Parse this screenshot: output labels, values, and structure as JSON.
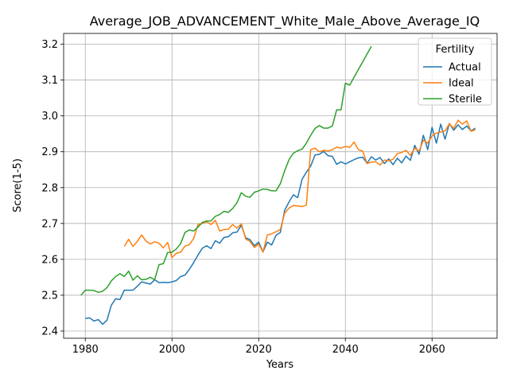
{
  "chart_data": {
    "type": "line",
    "title": "Average_JOB_ADVANCEMENT_White_Male_Above_Average_IQ",
    "xlabel": "Years",
    "ylabel": "Score(1-5)",
    "xlim": [
      1975,
      2075
    ],
    "ylim": [
      2.38,
      3.23
    ],
    "xticks": [
      1980,
      2000,
      2020,
      2040,
      2060
    ],
    "yticks": [
      2.4,
      2.5,
      2.6,
      2.7,
      2.8,
      2.9,
      3.0,
      3.1,
      3.2
    ],
    "xtick_labels": [
      "1980",
      "2000",
      "2020",
      "2040",
      "2060"
    ],
    "ytick_labels": [
      "2.4",
      "2.5",
      "2.6",
      "2.7",
      "2.8",
      "2.9",
      "3.0",
      "3.1",
      "3.2"
    ],
    "grid": true,
    "legend": {
      "title": "Fertility",
      "placement": "top-right"
    },
    "series": [
      {
        "name": "Actual",
        "color": "#1f77b4",
        "x": [
          1980,
          1981,
          1982,
          1983,
          1984,
          1985,
          1986,
          1987,
          1988,
          1989,
          1990,
          1991,
          1992,
          1993,
          1994,
          1995,
          1996,
          1997,
          1998,
          1999,
          2000,
          2001,
          2002,
          2003,
          2004,
          2005,
          2006,
          2007,
          2008,
          2009,
          2010,
          2011,
          2012,
          2013,
          2014,
          2015,
          2016,
          2017,
          2018,
          2019,
          2020,
          2021,
          2022,
          2023,
          2024,
          2025,
          2026,
          2027,
          2028,
          2029,
          2030,
          2031,
          2032,
          2033,
          2034,
          2035,
          2036,
          2037,
          2038,
          2039,
          2040,
          2041,
          2042,
          2043,
          2044,
          2045,
          2046,
          2047,
          2048,
          2049,
          2050,
          2051,
          2052,
          2053,
          2054,
          2055,
          2056,
          2057,
          2058,
          2059,
          2060,
          2061,
          2062,
          2063,
          2064,
          2065,
          2066,
          2067,
          2068,
          2069,
          2070
        ],
        "values": [
          2.435,
          2.437,
          2.428,
          2.432,
          2.419,
          2.43,
          2.472,
          2.49,
          2.488,
          2.514,
          2.514,
          2.514,
          2.525,
          2.537,
          2.534,
          2.531,
          2.543,
          2.535,
          2.536,
          2.535,
          2.537,
          2.541,
          2.552,
          2.556,
          2.572,
          2.591,
          2.612,
          2.631,
          2.638,
          2.63,
          2.652,
          2.645,
          2.661,
          2.663,
          2.674,
          2.676,
          2.695,
          2.66,
          2.655,
          2.638,
          2.648,
          2.621,
          2.648,
          2.64,
          2.667,
          2.675,
          2.737,
          2.76,
          2.78,
          2.772,
          2.823,
          2.843,
          2.86,
          2.891,
          2.893,
          2.901,
          2.889,
          2.887,
          2.865,
          2.872,
          2.866,
          2.872,
          2.878,
          2.883,
          2.885,
          2.868,
          2.886,
          2.877,
          2.884,
          2.867,
          2.88,
          2.864,
          2.882,
          2.869,
          2.888,
          2.876,
          2.918,
          2.893,
          2.946,
          2.906,
          2.968,
          2.924,
          2.977,
          2.935,
          2.979,
          2.96,
          2.975,
          2.962,
          2.972,
          2.958,
          2.966
        ]
      },
      {
        "name": "Ideal",
        "color": "#ff7f0e",
        "x": [
          1989,
          1990,
          1991,
          1992,
          1993,
          1994,
          1995,
          1996,
          1997,
          1998,
          1999,
          2000,
          2001,
          2002,
          2003,
          2004,
          2005,
          2006,
          2007,
          2008,
          2009,
          2010,
          2011,
          2012,
          2013,
          2014,
          2015,
          2016,
          2017,
          2018,
          2019,
          2020,
          2021,
          2022,
          2023,
          2024,
          2025,
          2026,
          2027,
          2028,
          2029,
          2030,
          2031,
          2032,
          2033,
          2034,
          2035,
          2036,
          2037,
          2038,
          2039,
          2040,
          2041,
          2042,
          2043,
          2044,
          2045,
          2046,
          2047,
          2048,
          2049,
          2050,
          2051,
          2052,
          2053,
          2054,
          2055,
          2056,
          2057,
          2058,
          2059,
          2060,
          2061,
          2062,
          2063,
          2064,
          2065,
          2066,
          2067,
          2068,
          2069,
          2070
        ],
        "values": [
          2.636,
          2.656,
          2.636,
          2.65,
          2.668,
          2.651,
          2.643,
          2.649,
          2.645,
          2.632,
          2.647,
          2.605,
          2.617,
          2.62,
          2.637,
          2.641,
          2.658,
          2.697,
          2.7,
          2.705,
          2.697,
          2.709,
          2.679,
          2.683,
          2.684,
          2.697,
          2.687,
          2.699,
          2.657,
          2.65,
          2.633,
          2.643,
          2.62,
          2.668,
          2.671,
          2.677,
          2.683,
          2.729,
          2.743,
          2.75,
          2.749,
          2.747,
          2.751,
          2.906,
          2.91,
          2.9,
          2.904,
          2.902,
          2.906,
          2.913,
          2.91,
          2.915,
          2.912,
          2.927,
          2.906,
          2.902,
          2.867,
          2.871,
          2.872,
          2.863,
          2.877,
          2.875,
          2.879,
          2.895,
          2.898,
          2.904,
          2.89,
          2.91,
          2.902,
          2.932,
          2.924,
          2.944,
          2.952,
          2.955,
          2.958,
          2.978,
          2.965,
          2.988,
          2.977,
          2.986,
          2.957,
          2.962
        ]
      },
      {
        "name": "Sterile",
        "color": "#2ca02c",
        "x": [
          1979,
          1980,
          1981,
          1982,
          1983,
          1984,
          1985,
          1986,
          1987,
          1988,
          1989,
          1990,
          1991,
          1992,
          1993,
          1994,
          1995,
          1996,
          1997,
          1998,
          1999,
          2000,
          2001,
          2002,
          2003,
          2004,
          2005,
          2006,
          2007,
          2008,
          2009,
          2010,
          2011,
          2012,
          2013,
          2014,
          2015,
          2016,
          2017,
          2018,
          2019,
          2020,
          2021,
          2022,
          2023,
          2024,
          2025,
          2026,
          2027,
          2028,
          2029,
          2030,
          2031,
          2032,
          2033,
          2034,
          2035,
          2036,
          2037,
          2038,
          2039,
          2040,
          2041,
          2046
        ],
        "values": [
          2.5,
          2.514,
          2.514,
          2.513,
          2.508,
          2.511,
          2.521,
          2.54,
          2.552,
          2.56,
          2.552,
          2.567,
          2.542,
          2.554,
          2.543,
          2.544,
          2.55,
          2.543,
          2.585,
          2.588,
          2.619,
          2.62,
          2.629,
          2.644,
          2.675,
          2.682,
          2.679,
          2.69,
          2.703,
          2.707,
          2.707,
          2.72,
          2.725,
          2.734,
          2.731,
          2.742,
          2.758,
          2.786,
          2.776,
          2.773,
          2.787,
          2.791,
          2.796,
          2.795,
          2.791,
          2.791,
          2.811,
          2.847,
          2.878,
          2.896,
          2.903,
          2.907,
          2.924,
          2.946,
          2.965,
          2.973,
          2.966,
          2.966,
          2.972,
          3.017,
          3.017,
          3.091,
          3.086,
          3.194
        ]
      }
    ]
  }
}
